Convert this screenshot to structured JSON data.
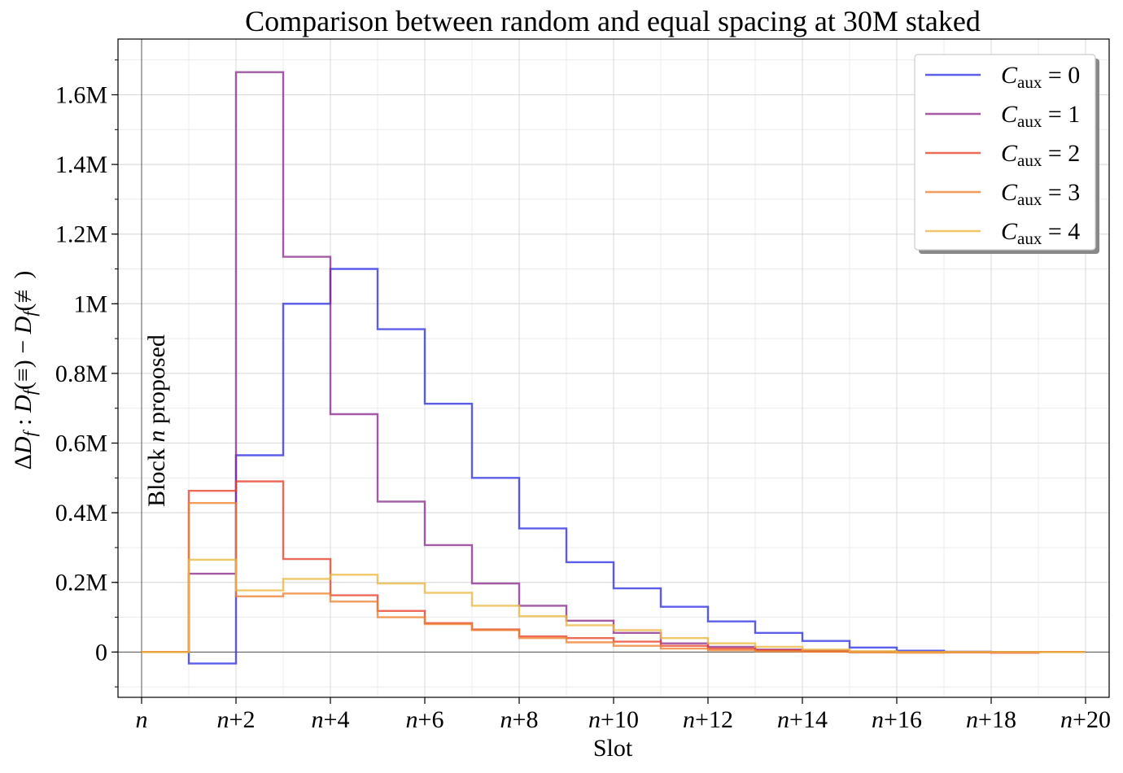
{
  "chart_data": {
    "type": "step",
    "title": "Comparison between random and equal spacing at 30M staked",
    "xlabel": "Slot",
    "ylabel": "ΔD_f : D_f(≡) − D_f(≢)",
    "ylabel_parts": {
      "delta": "Δ",
      "d": "D",
      "f": "f",
      "colon": " : ",
      "eq": "(≡)",
      "minus": " − ",
      "neq": "(≢)"
    },
    "annotation": "Block n proposed",
    "annotation_parts": {
      "pre": "Block ",
      "n": "n",
      "post": " proposed"
    },
    "xlim": [
      -0.5,
      20.5
    ],
    "ylim": [
      -130000,
      1760000
    ],
    "grid": true,
    "legend_position": "top-right",
    "x_ticks": [
      {
        "value": 0,
        "n": "n",
        "suffix": ""
      },
      {
        "value": 2,
        "n": "n",
        "suffix": "+2"
      },
      {
        "value": 4,
        "n": "n",
        "suffix": "+4"
      },
      {
        "value": 6,
        "n": "n",
        "suffix": "+6"
      },
      {
        "value": 8,
        "n": "n",
        "suffix": "+8"
      },
      {
        "value": 10,
        "n": "n",
        "suffix": "+10"
      },
      {
        "value": 12,
        "n": "n",
        "suffix": "+12"
      },
      {
        "value": 14,
        "n": "n",
        "suffix": "+14"
      },
      {
        "value": 16,
        "n": "n",
        "suffix": "+16"
      },
      {
        "value": 18,
        "n": "n",
        "suffix": "+18"
      },
      {
        "value": 20,
        "n": "n",
        "suffix": "+20"
      }
    ],
    "y_ticks": [
      {
        "value": 0,
        "label": "0"
      },
      {
        "value": 200000,
        "label": "0.2M"
      },
      {
        "value": 400000,
        "label": "0.4M"
      },
      {
        "value": 600000,
        "label": "0.6M"
      },
      {
        "value": 800000,
        "label": "0.8M"
      },
      {
        "value": 1000000,
        "label": "1M"
      },
      {
        "value": 1200000,
        "label": "1.2M"
      },
      {
        "value": 1400000,
        "label": "1.4M"
      },
      {
        "value": 1600000,
        "label": "1.6M"
      }
    ],
    "x": [
      0,
      1,
      2,
      3,
      4,
      5,
      6,
      7,
      8,
      9,
      10,
      11,
      12,
      13,
      14,
      15,
      16,
      17,
      18,
      19,
      20
    ],
    "series": [
      {
        "name_var": "C",
        "name_sub": "aux",
        "name_rest": " = 0",
        "color": "#3030e6",
        "values": [
          0,
          -33000,
          565000,
          1000000,
          1100000,
          927000,
          713000,
          500000,
          355000,
          258000,
          183000,
          130000,
          88000,
          55000,
          32000,
          13000,
          4000,
          1000,
          0,
          0,
          0
        ]
      },
      {
        "name_var": "C",
        "name_sub": "aux",
        "name_rest": " = 1",
        "color": "#8b2c8b",
        "values": [
          0,
          225000,
          1665000,
          1135000,
          683000,
          432000,
          307000,
          197000,
          133000,
          90000,
          55000,
          25000,
          15000,
          7000,
          4000,
          1000,
          0,
          0,
          0,
          0,
          0
        ]
      },
      {
        "name_var": "C",
        "name_sub": "aux",
        "name_rest": " = 2",
        "color": "#e8402a",
        "values": [
          0,
          463000,
          490000,
          267000,
          163000,
          118000,
          83000,
          65000,
          45000,
          40000,
          30000,
          18000,
          10000,
          5000,
          2000,
          1000,
          0,
          -1000,
          -2000,
          0,
          0
        ]
      },
      {
        "name_var": "C",
        "name_sub": "aux",
        "name_rest": " = 3",
        "color": "#ee8030",
        "values": [
          0,
          428000,
          160000,
          168000,
          145000,
          100000,
          80000,
          63000,
          40000,
          28000,
          18000,
          10000,
          5000,
          2000,
          1000,
          -1000,
          -2000,
          0,
          0,
          0,
          0
        ]
      },
      {
        "name_var": "C",
        "name_sub": "aux",
        "name_rest": " = 4",
        "color": "#ecb640",
        "values": [
          0,
          265000,
          177000,
          210000,
          222000,
          197000,
          170000,
          133000,
          103000,
          77000,
          63000,
          40000,
          25000,
          15000,
          7000,
          2000,
          0,
          0,
          0,
          0,
          0
        ]
      }
    ]
  }
}
